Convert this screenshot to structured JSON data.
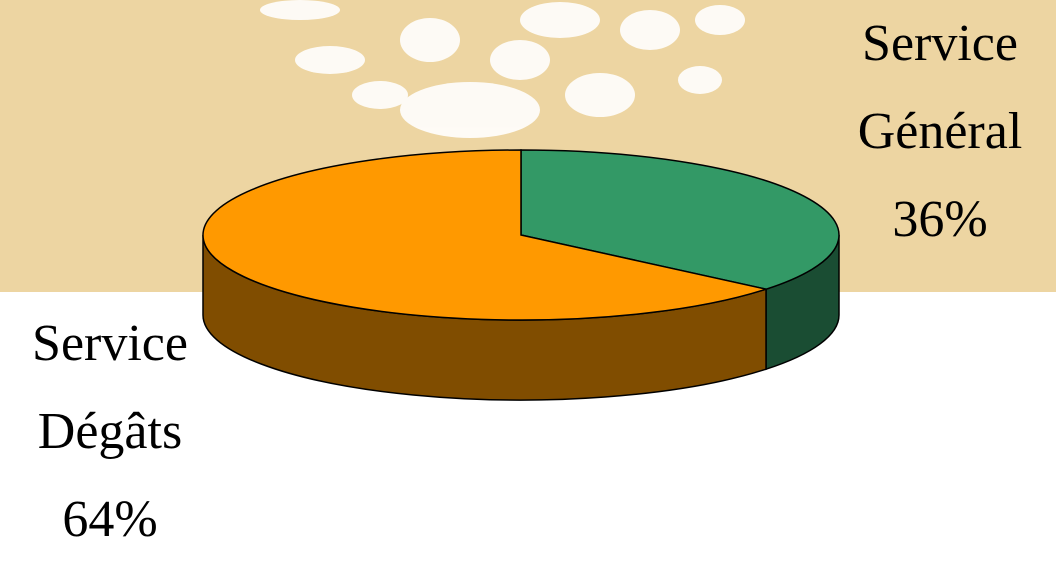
{
  "chart_data": {
    "type": "pie",
    "categories": [
      "Service Dégâts",
      "Service Général"
    ],
    "values": [
      64,
      36
    ],
    "value_labels": [
      "64%",
      "36%"
    ],
    "colors": [
      "#ff9900",
      "#339966"
    ]
  }
}
